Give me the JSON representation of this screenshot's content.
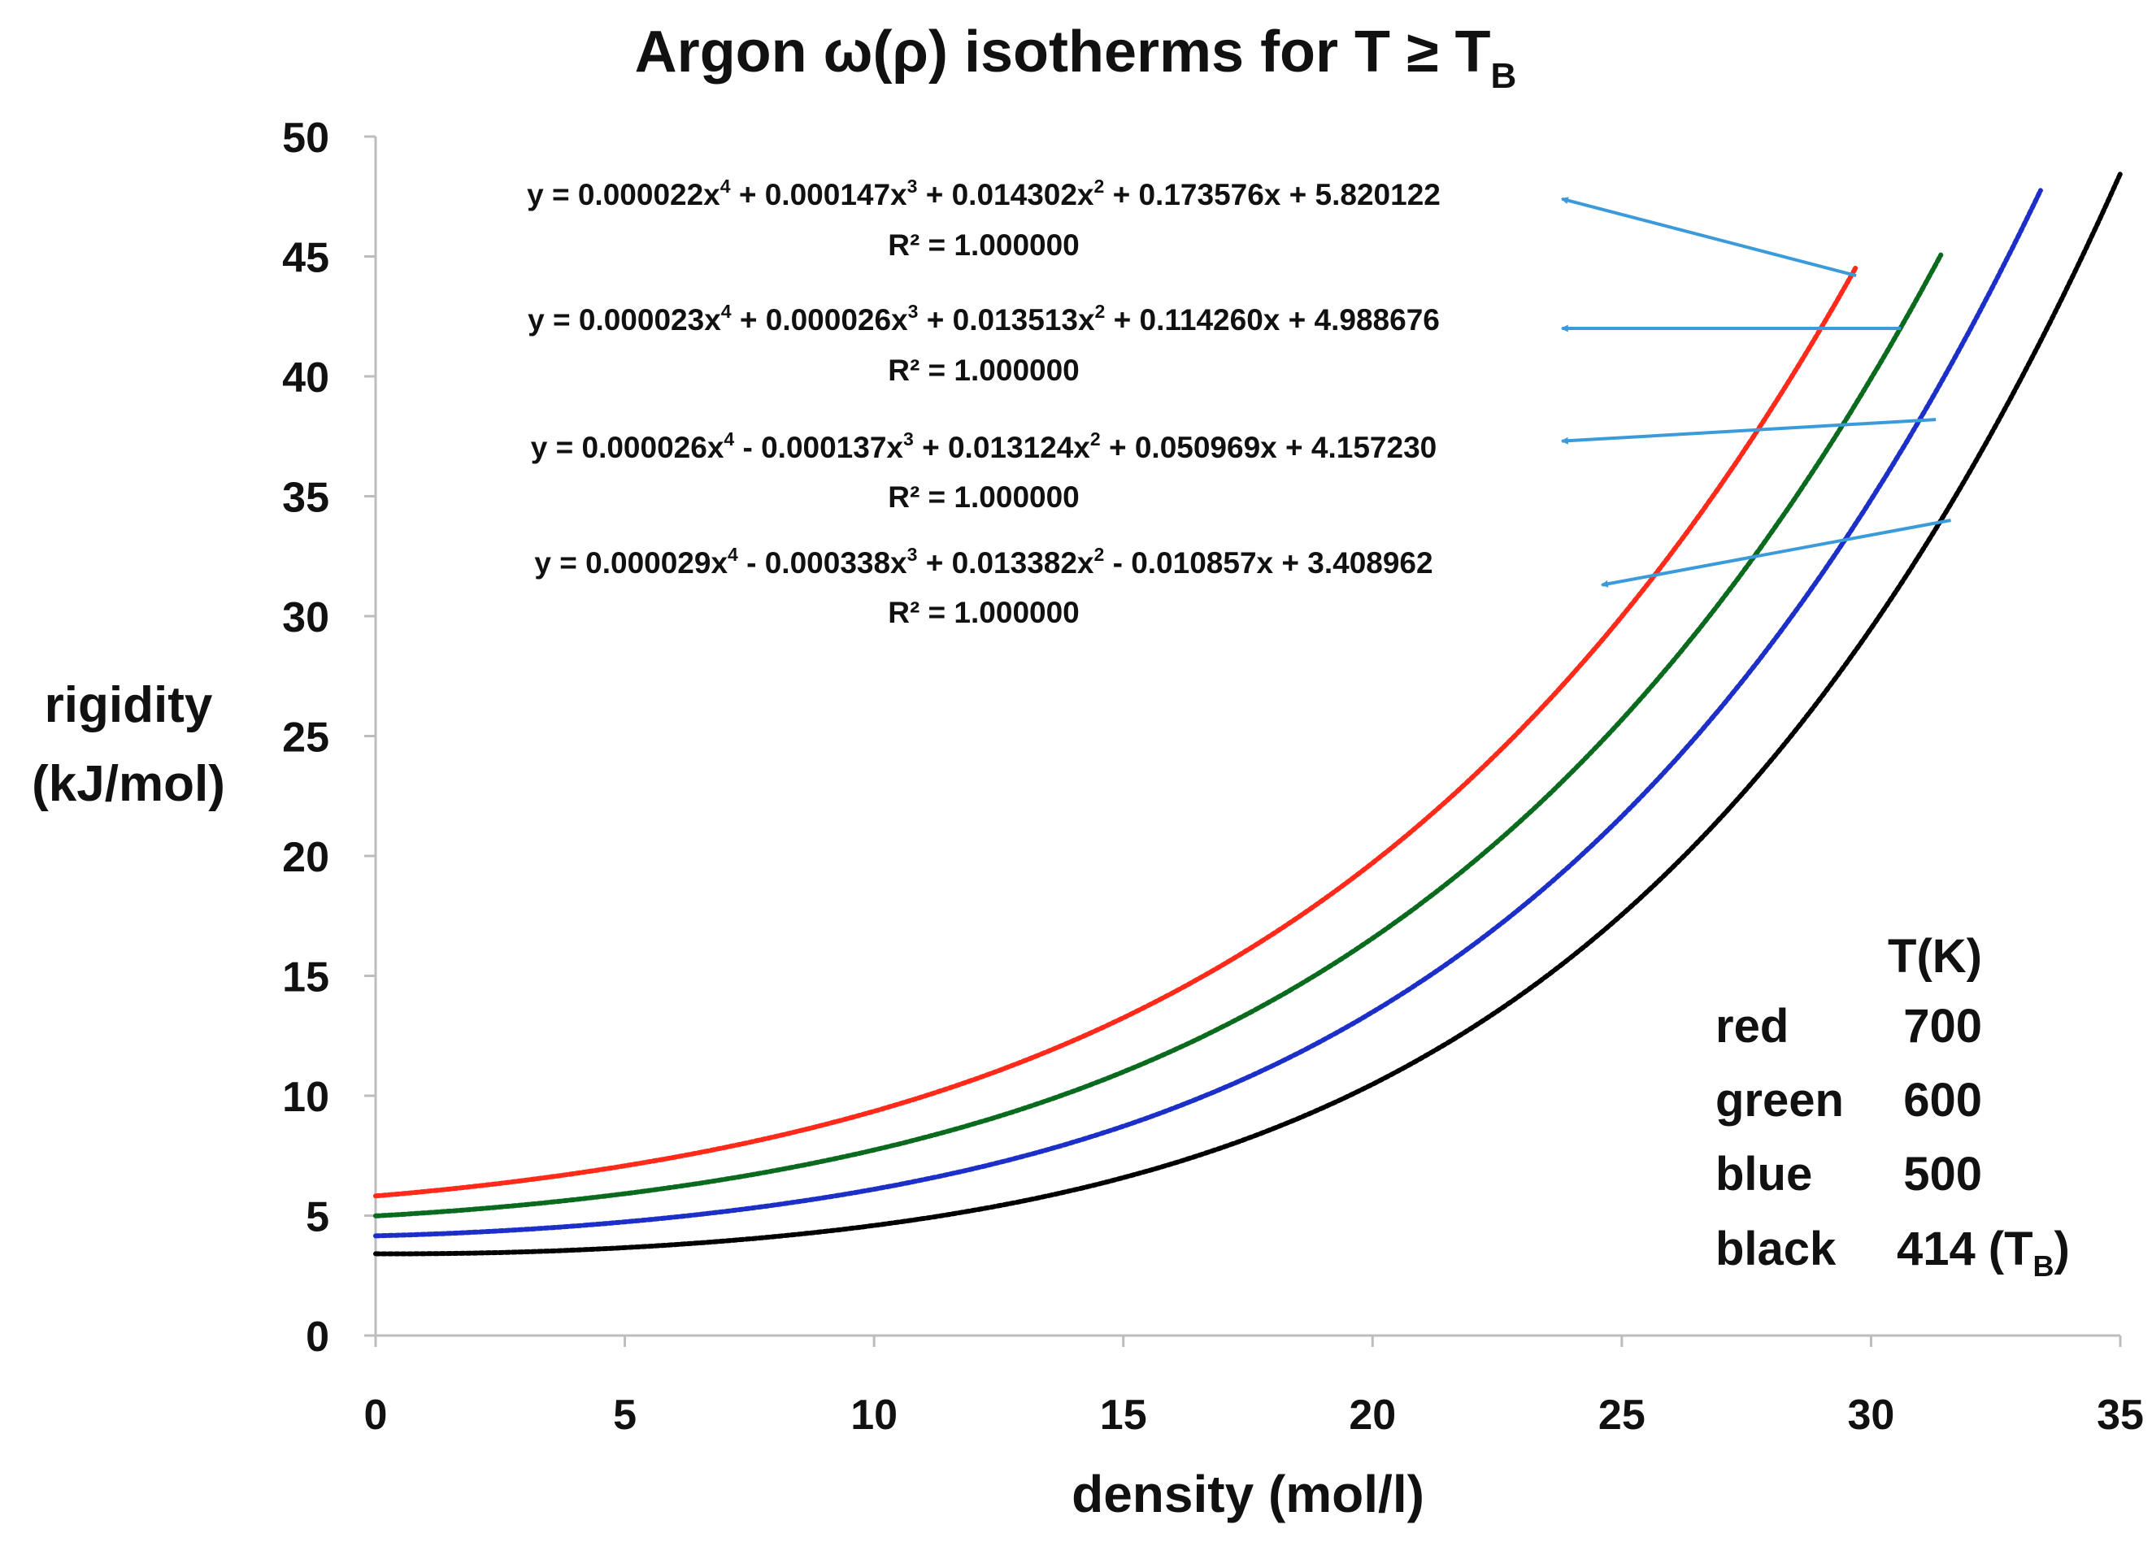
{
  "chart_data": {
    "type": "line",
    "title": "Argon ω(ρ) isotherms for T ≥ T",
    "title_subscript": "B",
    "xlabel": "density (mol/l)",
    "ylabel_line1": "rigidity",
    "ylabel_line2": "(kJ/mol)",
    "xlim": [
      0,
      35
    ],
    "ylim": [
      0,
      50
    ],
    "x_ticks": [
      0,
      5,
      10,
      15,
      20,
      25,
      30,
      35
    ],
    "y_ticks": [
      0,
      5,
      10,
      15,
      20,
      25,
      30,
      35,
      40,
      45,
      50
    ],
    "grid": false,
    "series": [
      {
        "name": "red",
        "temperature": "700",
        "color": "#ff2a1a",
        "coefficients": [
          2.2e-05,
          0.000147,
          0.014302,
          0.173576,
          5.820122
        ],
        "x_range": [
          0,
          29.7
        ]
      },
      {
        "name": "green",
        "temperature": "600",
        "color": "#0a6b1f",
        "coefficients": [
          2.3e-05,
          2.6e-05,
          0.013513,
          0.11426,
          4.988676
        ],
        "x_range": [
          0,
          31.4
        ]
      },
      {
        "name": "blue",
        "temperature": "500",
        "color": "#1c2fc8",
        "coefficients": [
          2.6e-05,
          -0.000137,
          0.013124,
          0.050969,
          4.15723
        ],
        "x_range": [
          0,
          33.4
        ]
      },
      {
        "name": "black",
        "temperature": "414",
        "temperature_suffix": "(T",
        "temperature_suffix_sub": "B",
        "temperature_suffix_end": ")",
        "color": "#000000",
        "coefficients": [
          2.9e-05,
          -0.000338,
          0.013382,
          -0.010857,
          3.408962
        ],
        "x_range": [
          0,
          35
        ]
      }
    ],
    "annotations": [
      {
        "equation_a": "y = 0.000022x",
        "equation_b": " + 0.000147x",
        "equation_c": " + 0.014302x",
        "equation_d": " + 0.173576x + 5.820122",
        "r2": "R² = 1.000000",
        "arrow_from": [
          29.7,
          44.2
        ],
        "arrow_to": [
          23.8,
          47.4
        ]
      },
      {
        "equation_a": "y = 0.000023x",
        "equation_b": " + 0.000026x",
        "equation_c": " + 0.013513x",
        "equation_d": " + 0.114260x + 4.988676",
        "r2": "R² = 1.000000",
        "arrow_from": [
          30.6,
          42.0
        ],
        "arrow_to": [
          23.8,
          42.0
        ]
      },
      {
        "equation_a": "y = 0.000026x",
        "equation_b": " - 0.000137x",
        "equation_c": " + 0.013124x",
        "equation_d": " + 0.050969x + 4.157230",
        "r2": "R² = 1.000000",
        "arrow_from": [
          31.3,
          38.2
        ],
        "arrow_to": [
          23.8,
          37.3
        ]
      },
      {
        "equation_a": "y = 0.000029x",
        "equation_b": " - 0.000338x",
        "equation_c": " + 0.013382x",
        "equation_d": " - 0.010857x + 3.408962",
        "r2": "R² = 1.000000",
        "arrow_from": [
          31.6,
          34.0
        ],
        "arrow_to": [
          24.6,
          31.3
        ]
      }
    ],
    "superscripts": [
      "4",
      "3",
      "2"
    ],
    "legend": {
      "title": "T(K)",
      "placement": "bottom-right"
    }
  }
}
